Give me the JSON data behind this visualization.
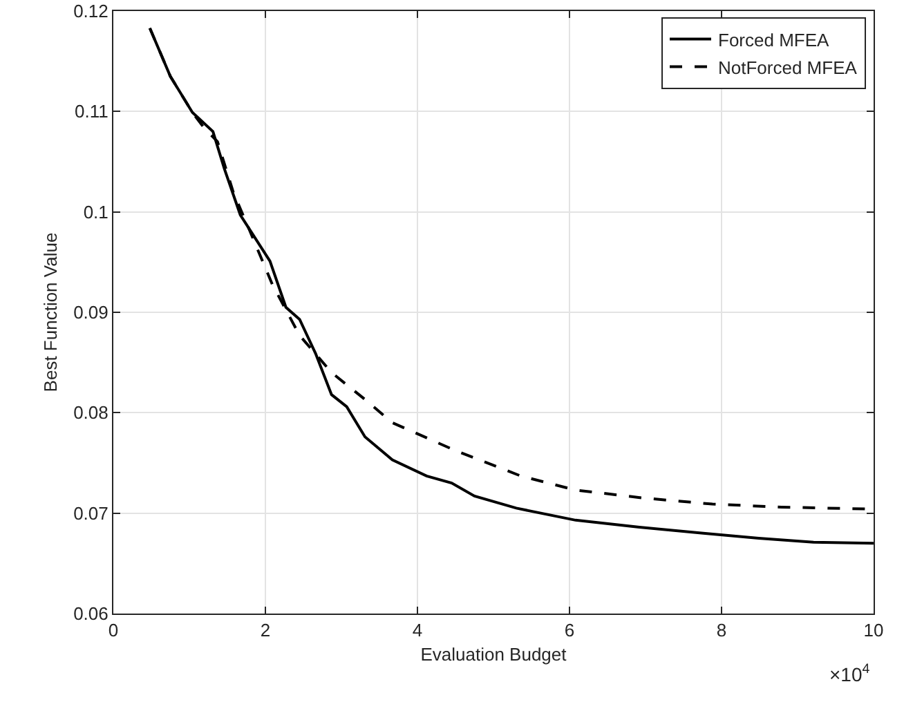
{
  "chart_data": {
    "type": "line",
    "xlabel": "Evaluation Budget",
    "ylabel": "Best Function Value",
    "xlim": [
      0,
      10
    ],
    "xticks": [
      0,
      2,
      4,
      6,
      8,
      10
    ],
    "ylim": [
      0.06,
      0.12
    ],
    "yticks": [
      0.06,
      0.07,
      0.08,
      0.09,
      0.1,
      0.11,
      0.12
    ],
    "grid": true,
    "legend": "top right",
    "annotations": [
      "×10$^{4}$"
    ],
    "series": [
      {
        "name": "Forced MFEA",
        "color": "#000000",
        "line_style": "solid",
        "x": [
          0.48,
          0.75,
          1.04,
          1.31,
          1.46,
          1.67,
          2.06,
          2.27,
          2.45,
          2.66,
          2.87,
          3.07,
          3.31,
          3.67,
          4.12,
          4.45,
          4.75,
          5.3,
          6.08,
          6.92,
          7.76,
          8.49,
          9.21,
          10
        ],
        "values": [
          0.1183,
          0.1135,
          0.1099,
          0.108,
          0.1043,
          0.0997,
          0.0951,
          0.0905,
          0.0893,
          0.0859,
          0.0818,
          0.0806,
          0.0776,
          0.0753,
          0.0737,
          0.073,
          0.0717,
          0.0705,
          0.0693,
          0.0686,
          0.068,
          0.0675,
          0.0671,
          0.067
        ]
      },
      {
        "name": "NotForced MFEA",
        "color": "#000000",
        "line_style": "dashed",
        "x": [
          0.48,
          0.75,
          1.04,
          1.19,
          1.37,
          1.58,
          1.79,
          2.09,
          2.45,
          2.87,
          3.33,
          3.67,
          4.51,
          5.36,
          6.08,
          6.98,
          7.88,
          8.79,
          10
        ],
        "values": [
          0.1183,
          0.1135,
          0.1099,
          0.1084,
          0.107,
          0.1019,
          0.0982,
          0.0928,
          0.0877,
          0.084,
          0.0812,
          0.079,
          0.0762,
          0.0737,
          0.0723,
          0.0715,
          0.0709,
          0.0706,
          0.0704
        ]
      }
    ]
  }
}
